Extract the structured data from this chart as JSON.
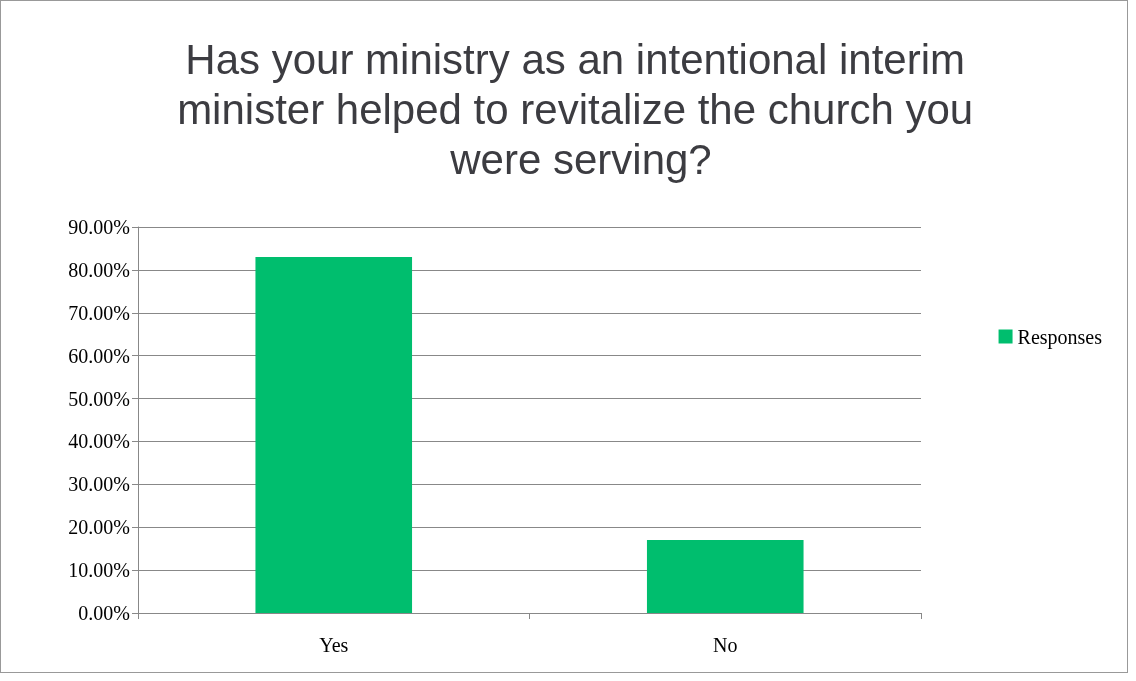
{
  "chart_data": {
    "type": "bar",
    "title": "Has your ministry as an intentional interim minister helped to revitalize the church you were serving?",
    "categories": [
      "Yes",
      "No"
    ],
    "series": [
      {
        "name": "Responses",
        "color": "#00be6e",
        "values": [
          83,
          17
        ]
      }
    ],
    "ylim": [
      0,
      90
    ],
    "yticks": [
      {
        "value": 0,
        "label": "0.00%"
      },
      {
        "value": 10,
        "label": "10.00%"
      },
      {
        "value": 20,
        "label": "20.00%"
      },
      {
        "value": 30,
        "label": "30.00%"
      },
      {
        "value": 40,
        "label": "40.00%"
      },
      {
        "value": 50,
        "label": "50.00%"
      },
      {
        "value": 60,
        "label": "60.00%"
      },
      {
        "value": 70,
        "label": "70.00%"
      },
      {
        "value": 80,
        "label": "80.00%"
      },
      {
        "value": 90,
        "label": "90.00%"
      }
    ],
    "grid": "y",
    "legend": "right"
  }
}
